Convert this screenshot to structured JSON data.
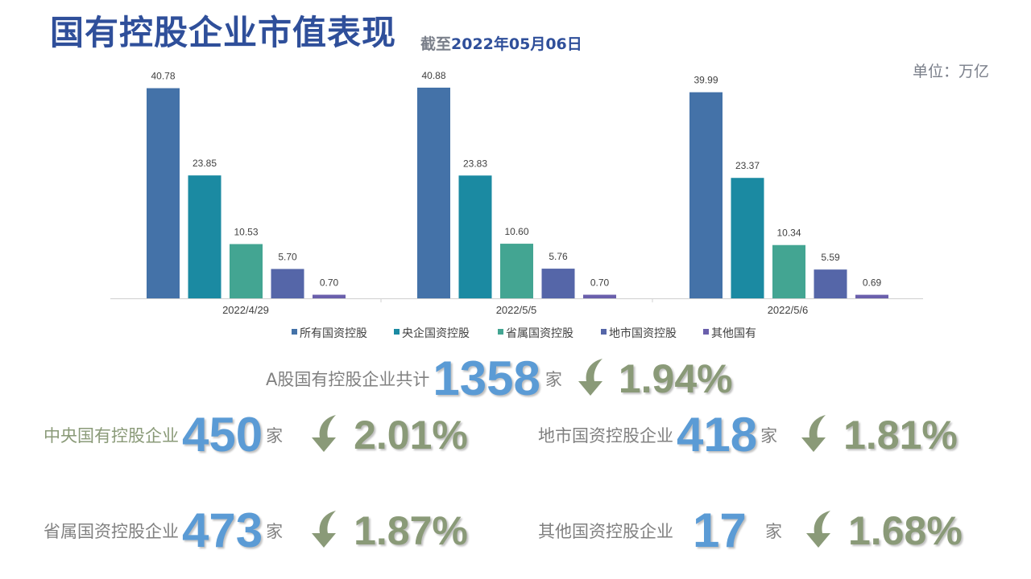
{
  "header": {
    "title": "国有控股企业市值表现",
    "asof_prefix": "截至",
    "asof_date": "2022年05月06日",
    "unit": "单位：万亿"
  },
  "chart_data": {
    "type": "bar",
    "categories": [
      "2022/4/29",
      "2022/5/5",
      "2022/5/6"
    ],
    "series": [
      {
        "name": "所有国资控股",
        "color": "#4472a8",
        "values": [
          40.78,
          40.88,
          39.99
        ],
        "labels": [
          "40.78",
          "40.88",
          "39.99"
        ]
      },
      {
        "name": "央企国资控股",
        "color": "#1b8aa2",
        "values": [
          23.85,
          23.83,
          23.37
        ],
        "labels": [
          "23.85",
          "23.83",
          "23.37"
        ]
      },
      {
        "name": "省属国资控股",
        "color": "#43a592",
        "values": [
          10.53,
          10.6,
          10.34
        ],
        "labels": [
          "10.53",
          "10.60",
          "10.34"
        ]
      },
      {
        "name": "地市国资控股",
        "color": "#5566a8",
        "values": [
          5.7,
          5.76,
          5.59
        ],
        "labels": [
          "5.70",
          "5.76",
          "5.59"
        ]
      },
      {
        "name": "其他国有",
        "color": "#6a5fac",
        "values": [
          0.7,
          0.7,
          0.69
        ],
        "labels": [
          "0.70",
          "0.70",
          "0.69"
        ]
      }
    ],
    "ylim": [
      0,
      40.88
    ],
    "grid": false,
    "legend": "bottom"
  },
  "stats": {
    "total": {
      "label": "A股国有控股企业共计",
      "count": "1358",
      "unit": "家",
      "change": "1.94%"
    },
    "central": {
      "label": "中央国有控股企业",
      "count": "450",
      "unit": "家",
      "change": "2.01%"
    },
    "city": {
      "label": "地市国资控股企业",
      "count": "418",
      "unit": "家",
      "change": "1.81%"
    },
    "provincial": {
      "label": "省属国资控股企业",
      "count": "473",
      "unit": "家",
      "change": "1.87%"
    },
    "other": {
      "label": "其他国资控股企业",
      "count": "17",
      "unit": "家",
      "change": "1.68%"
    }
  },
  "colors": {
    "arrow": "#8a9a78",
    "count": "#5b9bd5",
    "title": "#2f4f9a"
  }
}
